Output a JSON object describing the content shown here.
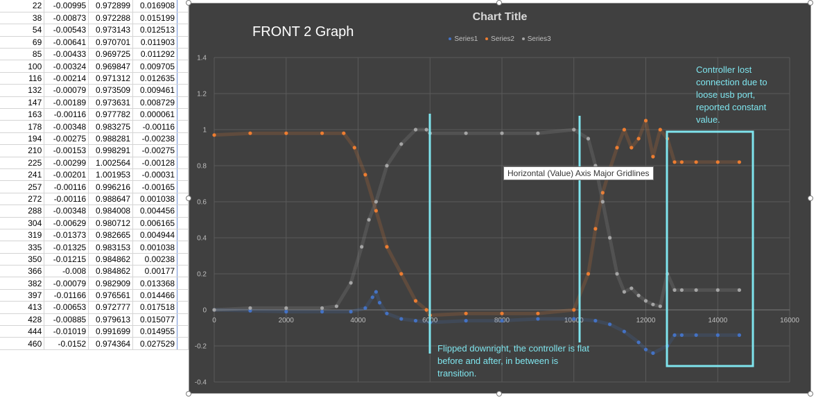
{
  "sheet": {
    "rows": [
      [
        "22",
        "-0.00995",
        "0.972899",
        "0.016908"
      ],
      [
        "38",
        "-0.00873",
        "0.972288",
        "0.015199"
      ],
      [
        "54",
        "-0.00543",
        "0.973143",
        "0.012513"
      ],
      [
        "69",
        "-0.00641",
        "0.970701",
        "0.011903"
      ],
      [
        "85",
        "-0.00433",
        "0.969725",
        "0.011292"
      ],
      [
        "100",
        "-0.00324",
        "0.969847",
        "0.009705"
      ],
      [
        "116",
        "-0.00214",
        "0.971312",
        "0.012635"
      ],
      [
        "132",
        "-0.00079",
        "0.973509",
        "0.009461"
      ],
      [
        "147",
        "-0.00189",
        "0.973631",
        "0.008729"
      ],
      [
        "163",
        "-0.00116",
        "0.977782",
        "0.000061"
      ],
      [
        "178",
        "-0.00348",
        "0.983275",
        "-0.00116"
      ],
      [
        "194",
        "-0.00275",
        "0.988281",
        "-0.00238"
      ],
      [
        "210",
        "-0.00153",
        "0.998291",
        "-0.00275"
      ],
      [
        "225",
        "-0.00299",
        "1.002564",
        "-0.00128"
      ],
      [
        "241",
        "-0.00201",
        "1.001953",
        "-0.00031"
      ],
      [
        "257",
        "-0.00116",
        "0.996216",
        "-0.00165"
      ],
      [
        "272",
        "-0.00116",
        "0.988647",
        "0.001038"
      ],
      [
        "288",
        "-0.00348",
        "0.984008",
        "0.004456"
      ],
      [
        "304",
        "-0.00629",
        "0.980712",
        "0.006165"
      ],
      [
        "319",
        "-0.01373",
        "0.982665",
        "0.004944"
      ],
      [
        "335",
        "-0.01325",
        "0.983153",
        "0.001038"
      ],
      [
        "350",
        "-0.01215",
        "0.984862",
        "0.00238"
      ],
      [
        "366",
        "-0.008",
        "0.984862",
        "0.00177"
      ],
      [
        "382",
        "-0.00079",
        "0.982909",
        "0.013368"
      ],
      [
        "397",
        "-0.01166",
        "0.976561",
        "0.014466"
      ],
      [
        "413",
        "-0.00653",
        "0.972777",
        "0.017518"
      ],
      [
        "428",
        "-0.00885",
        "0.979613",
        "0.015077"
      ],
      [
        "444",
        "-0.01019",
        "0.991699",
        "0.014955"
      ],
      [
        "460",
        "-0.0152",
        "0.974364",
        "0.027529"
      ]
    ]
  },
  "chart": {
    "title": "Chart Title",
    "graph_label": "FRONT 2 Graph",
    "tooltip": "Horizontal (Value) Axis Major Gridlines",
    "annotation_top": "Controller lost connection due to loose usb port, reported constant value.",
    "annotation_bottom": "Flipped downright, the controller is flat before and after, in between is transition.",
    "legend": [
      "Series1",
      "Series2",
      "Series3"
    ],
    "background_color": "#404040",
    "annotation_color": "#7fe5ee",
    "series_colors": [
      "#4472c4",
      "#ed7d31",
      "#a5a5a5"
    ]
  },
  "chart_data": {
    "type": "scatter",
    "title": "Chart Title",
    "xlabel": "",
    "ylabel": "",
    "xlim": [
      0,
      16000
    ],
    "ylim": [
      -0.4,
      1.4
    ],
    "x_ticks": [
      0,
      2000,
      4000,
      6000,
      8000,
      10000,
      12000,
      14000,
      16000
    ],
    "y_ticks": [
      -0.4,
      -0.2,
      0,
      0.2,
      0.4,
      0.6,
      0.8,
      1,
      1.2,
      1.4
    ],
    "grid": true,
    "legend_position": "top",
    "series": [
      {
        "name": "Series1",
        "x": [
          0,
          1000,
          2000,
          3000,
          3800,
          4200,
          4400,
          4500,
          4600,
          4800,
          5200,
          5600,
          6000,
          7000,
          8000,
          9000,
          10000,
          10600,
          11000,
          11400,
          11800,
          12000,
          12200,
          12600,
          12800,
          13000,
          13400,
          14000,
          14600
        ],
        "y": [
          0,
          -0.005,
          -0.01,
          -0.01,
          -0.01,
          0.01,
          0.07,
          0.1,
          0.04,
          -0.02,
          -0.05,
          -0.06,
          -0.07,
          -0.06,
          -0.06,
          -0.05,
          -0.05,
          -0.06,
          -0.08,
          -0.12,
          -0.18,
          -0.22,
          -0.24,
          -0.2,
          -0.14,
          -0.14,
          -0.14,
          -0.14,
          -0.14
        ]
      },
      {
        "name": "Series2",
        "x": [
          0,
          1000,
          2000,
          3000,
          3600,
          3900,
          4200,
          4500,
          4800,
          5200,
          5600,
          5900,
          6000,
          7000,
          8000,
          9000,
          10000,
          10400,
          10600,
          10800,
          11000,
          11200,
          11400,
          11600,
          11800,
          12000,
          12200,
          12400,
          12600,
          12800,
          13000,
          13400,
          14000,
          14600
        ],
        "y": [
          0.97,
          0.98,
          0.98,
          0.98,
          0.98,
          0.9,
          0.75,
          0.55,
          0.35,
          0.2,
          0.05,
          0.0,
          -0.03,
          -0.02,
          -0.02,
          -0.02,
          0.0,
          0.2,
          0.45,
          0.65,
          0.78,
          0.9,
          1.0,
          0.9,
          0.95,
          1.05,
          0.85,
          1.0,
          0.95,
          0.82,
          0.82,
          0.82,
          0.82,
          0.82
        ]
      },
      {
        "name": "Series3",
        "x": [
          0,
          1000,
          2000,
          3000,
          3400,
          3800,
          4100,
          4300,
          4500,
          4800,
          5200,
          5600,
          5900,
          6000,
          7000,
          8000,
          9000,
          10000,
          10400,
          10600,
          10800,
          11000,
          11200,
          11400,
          11600,
          11800,
          12000,
          12200,
          12400,
          12600,
          12800,
          13000,
          13400,
          14000,
          14600
        ],
        "y": [
          0.0,
          0.01,
          0.01,
          0.01,
          0.02,
          0.15,
          0.35,
          0.5,
          0.6,
          0.8,
          0.92,
          1.0,
          1.0,
          0.98,
          0.98,
          0.98,
          0.98,
          1.0,
          0.95,
          0.8,
          0.6,
          0.4,
          0.2,
          0.1,
          0.12,
          0.08,
          0.05,
          0.03,
          0.02,
          0.2,
          0.11,
          0.11,
          0.11,
          0.11,
          0.11
        ]
      }
    ]
  }
}
